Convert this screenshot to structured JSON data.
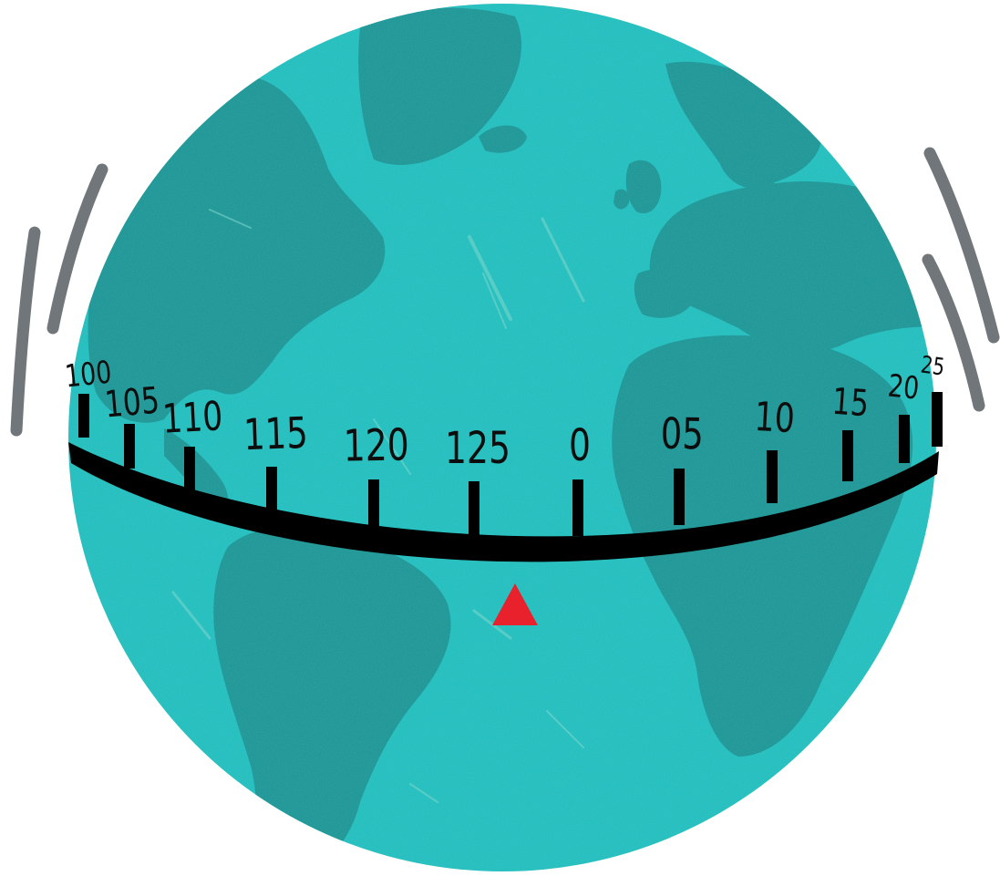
{
  "illustration": {
    "subject": "globe-dial",
    "colors": {
      "ocean": "#1cbcbc",
      "land": "#179393",
      "band": "#000000",
      "pointer": "#e8212c",
      "motion_lines": "#70767a"
    },
    "dial": {
      "ticks": [
        {
          "label": "100"
        },
        {
          "label": "105"
        },
        {
          "label": "110"
        },
        {
          "label": "115"
        },
        {
          "label": "120"
        },
        {
          "label": "125"
        },
        {
          "label": "0"
        },
        {
          "label": "05"
        },
        {
          "label": "10"
        },
        {
          "label": "15"
        },
        {
          "label": "20"
        },
        {
          "label": "25"
        }
      ]
    }
  }
}
